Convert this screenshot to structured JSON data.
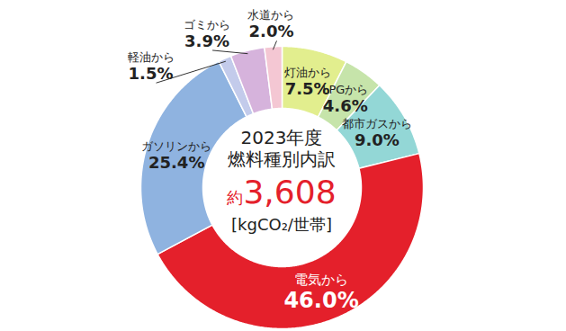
{
  "chart_data": {
    "type": "pie",
    "title": "2023年度",
    "subtitle": "燃料種別内訳",
    "total": 3608,
    "total_prefix": "約",
    "total_unit": "[kgCO₂/世帯]",
    "categories": [
      "灯油から",
      "LPGから",
      "都市ガスから",
      "電気から",
      "ガソリンから",
      "軽油から",
      "ゴミから",
      "水道から"
    ],
    "values": [
      7.5,
      4.6,
      9.0,
      46.0,
      25.4,
      1.5,
      3.9,
      2.0
    ],
    "value_labels": [
      "7.5%",
      "4.6%",
      "9.0%",
      "46.0%",
      "25.4%",
      "1.5%",
      "3.9%",
      "2.0%"
    ],
    "colors": [
      "#e2ee8e",
      "#c6e4aa",
      "#93d7d6",
      "#e4202b",
      "#8fb3e0",
      "#c3cbeb",
      "#d6b3dc",
      "#f4c7d3"
    ],
    "data_labels": true
  }
}
